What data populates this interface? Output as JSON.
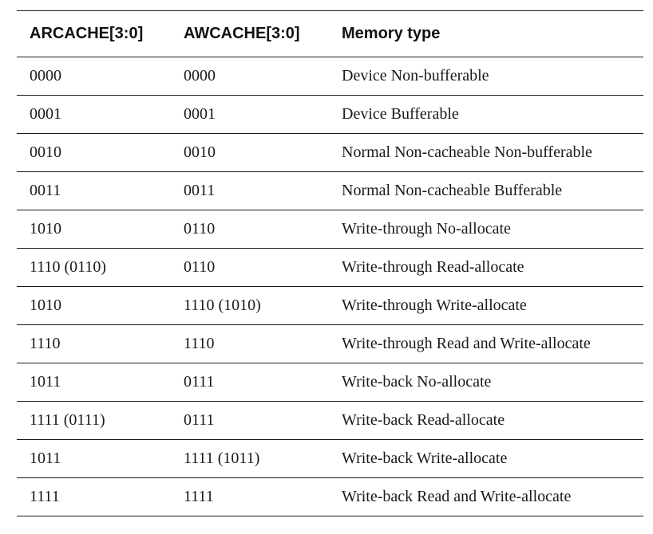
{
  "table": {
    "headers": [
      "ARCACHE[3:0]",
      "AWCACHE[3:0]",
      "Memory type"
    ],
    "rows": [
      [
        "0000",
        "0000",
        "Device Non-bufferable"
      ],
      [
        "0001",
        "0001",
        "Device Bufferable"
      ],
      [
        "0010",
        "0010",
        "Normal Non-cacheable Non-bufferable"
      ],
      [
        "0011",
        "0011",
        "Normal Non-cacheable Bufferable"
      ],
      [
        "1010",
        "0110",
        "Write-through No-allocate"
      ],
      [
        "1110 (0110)",
        "0110",
        "Write-through Read-allocate"
      ],
      [
        "1010",
        "1110 (1010)",
        "Write-through Write-allocate"
      ],
      [
        "1110",
        "1110",
        "Write-through Read and Write-allocate"
      ],
      [
        "1011",
        "0111",
        "Write-back No-allocate"
      ],
      [
        "1111 (0111)",
        "0111",
        "Write-back Read-allocate"
      ],
      [
        "1011",
        "1111 (1011)",
        "Write-back Write-allocate"
      ],
      [
        "1111",
        "1111",
        "Write-back Read and Write-allocate"
      ]
    ]
  }
}
